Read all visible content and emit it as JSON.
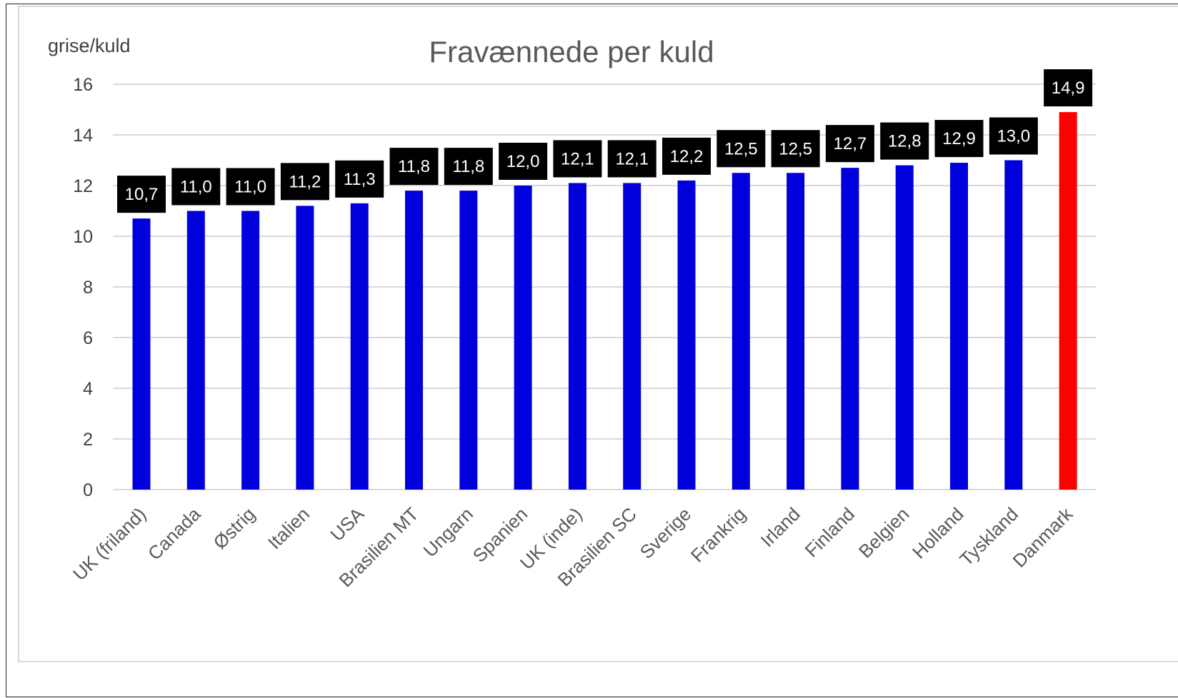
{
  "chart_data": {
    "type": "bar",
    "title": "Fravænnede per kuld",
    "ylabel": "grise/kuld",
    "xlabel": "",
    "ylim": [
      0,
      16
    ],
    "yticks": [
      0,
      2,
      4,
      6,
      8,
      10,
      12,
      14,
      16
    ],
    "grid": true,
    "legend": "none",
    "categories": [
      "UK (friland)",
      "Canada",
      "Østrig",
      "Italien",
      "USA",
      "Brasilien MT",
      "Ungarn",
      "Spanien",
      "UK (inde)",
      "Brasilien SC",
      "Sverige",
      "Frankrig",
      "Irland",
      "Finland",
      "Belgien",
      "Holland",
      "Tyskland",
      "Danmark"
    ],
    "values": [
      10.7,
      11.0,
      11.0,
      11.2,
      11.3,
      11.8,
      11.8,
      12.0,
      12.1,
      12.1,
      12.2,
      12.5,
      12.5,
      12.7,
      12.8,
      12.9,
      13.0,
      14.9
    ],
    "data_labels": [
      "10,7",
      "11,0",
      "11,0",
      "11,2",
      "11,3",
      "11,8",
      "11,8",
      "12,0",
      "12,1",
      "12,1",
      "12,2",
      "12,5",
      "12,5",
      "12,7",
      "12,8",
      "12,9",
      "13,0",
      "14,9"
    ],
    "colors": {
      "default_bar": "#0000dd",
      "highlight_bar": "#ff0000",
      "highlight_category": "Danmark",
      "label_background": "#000000",
      "label_text": "#ffffff",
      "gridline": "#d9d9d9"
    }
  }
}
